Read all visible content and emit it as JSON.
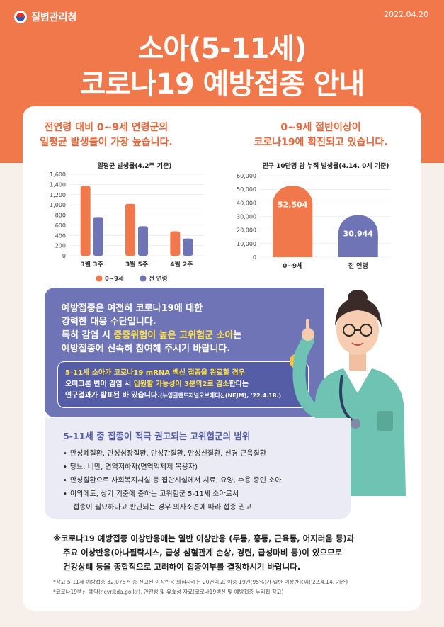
{
  "header": {
    "agency": "질병관리청",
    "date": "2022.04.20",
    "title_line1": "소아(5-11세)",
    "title_line2": "코로나19 예방접종 안내"
  },
  "colors": {
    "accent": "#f0784a",
    "series_child": "#f0784a",
    "series_all": "#6e74b5",
    "highlight": "#ffe14a"
  },
  "chart_left_heading": [
    "전연령 대비 0~9세 연령군의",
    "일평균 발생률이 가장 높습니다."
  ],
  "chart_right_heading": [
    "0~9세 절반이상이",
    "코로나19에 확진되고 있습니다."
  ],
  "chart_data": [
    {
      "type": "bar",
      "title": "일평균 발생률(4.2주 기준)",
      "categories": [
        "3월 3주",
        "3월 5주",
        "4월 2주"
      ],
      "series": [
        {
          "name": "0~9세",
          "values": [
            1370,
            1020,
            480
          ]
        },
        {
          "name": "전 연령",
          "values": [
            760,
            580,
            340
          ]
        }
      ],
      "ylim": [
        0,
        1600
      ],
      "yticks": [
        "0",
        "200",
        "400",
        "600",
        "800",
        "1,000",
        "1,200",
        "1,400",
        "1,600"
      ],
      "legend": "bottom"
    },
    {
      "type": "bar",
      "title": "인구 10만명 당 누적 발생률(4.14. 0시 기준)",
      "categories": [
        "0~9세",
        "전 연령"
      ],
      "values": [
        52504,
        30944
      ],
      "value_labels": [
        "52,504",
        "30,944"
      ],
      "ylim": [
        0,
        60000
      ],
      "yticks": [
        "0",
        "10,000",
        "20,000",
        "30,000",
        "40,000",
        "50,000",
        "60,000"
      ]
    }
  ],
  "main_message": {
    "line1": "예방접종은 여전히 코로나19에 대한",
    "line2": "강력한 대응 수단입니다.",
    "line3_pre": "특히 감염 시 ",
    "line3_hl": "중증위험이 높은 고위험군 소아",
    "line3_post": "는",
    "line4": "예방접종에 신속히 참여해 주시기 바랍니다."
  },
  "notice": {
    "line1": "5-11세 소아가 코로나19 mRNA 백신 접종을 완료할 경우",
    "line2_pre": "오미크론 변이 감염 시 ",
    "line2_hl": "입원할 가능성이 3분의2로 감소",
    "line2_post": "한다는",
    "line3": "연구결과가 발표된 바 있습니다.",
    "line3_src": "(뉴잉글랜드저널오브메디신(NEJM), '22.4.18.)"
  },
  "risk_group": {
    "title": "5-11세 중 접종이 적극 권고되는 고위험군의 범위",
    "items": [
      "만성폐질환, 만성심장질환, 만성간질환, 만성신질환, 신경·근육질환",
      "당뇨, 비만, 면역저하자(면역억제제 복용자)",
      "만성질환으로 사회복지시설 등 집단시설에서 치료, 요양, 수용 중인 소아",
      "이외에도, 상기 기준에 준하는 고위험군 5-11세 소아로서"
    ],
    "item_cont": "접종이 필요하다고 판단되는 경우 의사소견에 따라 접종 권고"
  },
  "footnote": {
    "line1": "※코로나19 예방접종 이상반응에는 일반 이상반응 (두통, 홍통, 근육통, 어지러움 등)과",
    "line2": "주요 이상반응(아나필락시스, 급성 심혈관계 손상, 경련, 급성마비 등)이 있으므로",
    "line3": "건강상태 등을 종합적으로 고려하여 접종여부를 결정하시기 바랍니다."
  },
  "refs": {
    "line1": "*참고 5-11세 예방접종 32,078건 중 신고된 이상반응 의심사례는 20건이고, 이중 19건(95%)가 일반 이상반응임('22.4.14. 기준)",
    "line2": "*코로나19백신 예약(ncvr.kda.go.kr), 안전성 및 유효성 자료(코로나19백신 및 예방접종 누리집 참고)"
  }
}
